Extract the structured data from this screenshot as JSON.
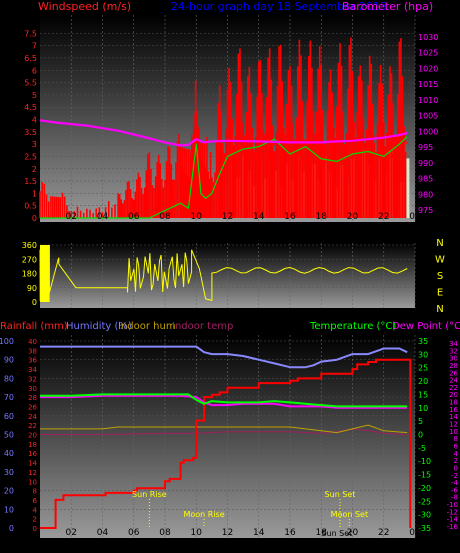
{
  "header": {
    "wind_label": "Windspeed (m/s)",
    "title": "24-hour graph day 18 September 2015",
    "baro_label": "Barometer (hpa)"
  },
  "bottom_header": {
    "rain_label": "Rainfall (mm)",
    "hum_label": "Humidity (%)",
    "indoor_hum_label": "Indoor hum",
    "indoor_temp_label": "Indoor temp",
    "temp_label": "Temperature (°C)",
    "dew_label": "Dew Point (°C)"
  },
  "colors": {
    "wind": "#ff0000",
    "gust_bg": "#ff0000",
    "avg_wind": "#00dd00",
    "direction": "#ffff00",
    "pressure": "#ff00ff",
    "temperature": "#00ff00",
    "humidity": "#8888ff",
    "rain": "#ff0000",
    "dew": "#ff00ff",
    "indoor_hum": "#c0a000",
    "indoor_temp": "#a02060",
    "white_bars": "#d0f0d0",
    "red_axis": "#ff2222",
    "magenta_axis": "#ff00ff",
    "blue_axis": "#7777ff",
    "green_axis": "#00ff00",
    "annotation": "#ffff00",
    "tick_text": "#000000"
  },
  "chart_data": [
    {
      "type": "line",
      "name": "wind_and_pressure",
      "xlabel": "",
      "x_ticks": [
        "02",
        "04",
        "06",
        "08",
        "10",
        "12",
        "14",
        "16",
        "18",
        "20",
        "22",
        "00"
      ],
      "wind_axis": {
        "label": "Windspeed (m/s)",
        "range": [
          0,
          8
        ],
        "ticks": [
          "0",
          "0.5",
          "1",
          "1.5",
          "2",
          "2.5",
          "3",
          "3.5",
          "4",
          "4.5",
          "5",
          "5.5",
          "6",
          "6.5",
          "7",
          "7.5"
        ]
      },
      "baro_axis": {
        "label": "Barometer (hpa)",
        "range": [
          972.5,
          1035
        ],
        "ticks": [
          "975",
          "980",
          "985",
          "990",
          "995",
          "1000",
          "1005",
          "1010",
          "1015",
          "1020",
          "1025",
          "1030"
        ]
      },
      "pressure_series": {
        "name": "Barometer",
        "x": [
          0,
          1,
          2,
          3,
          4,
          5,
          6,
          7,
          8,
          9,
          9.5,
          10,
          10.5,
          11,
          12,
          14,
          16,
          18,
          19,
          20,
          21,
          22,
          23,
          23.5
        ],
        "values": [
          1003.5,
          1002.8,
          1002.3,
          1001.8,
          1001.0,
          1000.2,
          999.0,
          997.8,
          996.5,
          995.5,
          995.7,
          997.5,
          996.5,
          996.8,
          997.0,
          996.8,
          996.5,
          996.5,
          996.8,
          997.0,
          997.5,
          998.0,
          998.8,
          999.5
        ]
      },
      "gust_envelope": {
        "name": "Gust",
        "x": [
          0,
          0.7,
          1.3,
          2,
          3,
          4,
          5,
          5.5,
          6,
          6.5,
          7,
          7.5,
          8,
          8.5,
          9,
          9.3,
          9.6,
          9.8,
          10,
          10.3,
          10.6,
          11,
          11.5,
          12,
          12.5,
          13,
          13.5,
          14,
          14.5,
          15,
          15.5,
          16,
          16.5,
          17,
          17.5,
          18,
          18.5,
          19,
          19.5,
          20,
          20.5,
          21,
          21.5,
          22,
          22.5,
          23,
          23.5
        ],
        "values": [
          1.5,
          1.5,
          1.2,
          0.5,
          0.4,
          0.5,
          1.0,
          1.5,
          1.6,
          2.0,
          2.8,
          2.5,
          2.8,
          3.2,
          3.5,
          3.2,
          3.0,
          4.0,
          6.2,
          3.8,
          3.5,
          2.5,
          5.5,
          6.0,
          6.5,
          7.5,
          5.8,
          6.5,
          7.5,
          6.0,
          7.8,
          6.2,
          7.5,
          6.5,
          7.8,
          6.8,
          5.8,
          7.5,
          6.5,
          7.8,
          6.2,
          7.0,
          5.8,
          6.5,
          6.2,
          7.8,
          5.5
        ]
      },
      "wind_series": {
        "name": "Windspeed",
        "x": [
          0,
          1,
          2,
          3,
          4,
          5,
          5.5,
          6,
          6.5,
          7,
          7.5,
          8,
          8.5,
          9,
          9.5,
          10,
          10.5,
          11,
          11.5,
          12,
          12.5,
          13,
          13.5,
          14,
          14.5,
          15,
          15.5,
          16,
          16.5,
          17,
          17.5,
          18,
          18.5,
          19,
          19.5,
          20,
          20.5,
          21,
          21.5,
          22,
          22.5,
          23,
          23.5
        ],
        "values": [
          0,
          0,
          0,
          0,
          0,
          0,
          0.2,
          0,
          0.3,
          0.2,
          0.4,
          0.6,
          0.3,
          0.5,
          0.8,
          1.5,
          1.2,
          0.8,
          1.8,
          2.2,
          3.0,
          3.5,
          2.4,
          2.8,
          3.5,
          3.0,
          2.4,
          3.6,
          2.8,
          2.2,
          3.0,
          2.0,
          2.5,
          1.8,
          2.8,
          2.4,
          3.2,
          2.6,
          3.4,
          2.8,
          2.4,
          3.6,
          3.0
        ]
      },
      "avg_wind_series": {
        "name": "Average wind",
        "x": [
          0,
          2,
          4,
          6,
          7,
          8,
          9,
          9.5,
          10,
          10.3,
          10.6,
          11,
          11.5,
          12,
          13,
          14,
          15,
          16,
          17,
          18,
          19,
          20,
          21,
          22,
          23,
          23.5
        ],
        "values": [
          0,
          0,
          0,
          0,
          0,
          0.3,
          0.6,
          0.4,
          3.0,
          1.0,
          0.8,
          1.0,
          1.8,
          2.5,
          2.8,
          2.9,
          3.2,
          2.6,
          2.9,
          2.4,
          2.3,
          2.6,
          2.7,
          2.5,
          3.0,
          3.3
        ]
      }
    },
    {
      "type": "scatter",
      "name": "wind_direction",
      "y_ticks": [
        "360",
        "270",
        "180",
        "90",
        "0"
      ],
      "compass_labels": [
        "N",
        "W",
        "S",
        "E",
        "N"
      ],
      "range": [
        0,
        360
      ],
      "segments": [
        {
          "x": [
            0,
            0.6
          ],
          "y": [
            330,
            60
          ]
        },
        {
          "x": [
            0.6,
            1.2
          ],
          "y": [
            60,
            280
          ]
        },
        {
          "x": [
            1.2,
            2.3
          ],
          "y": [
            240,
            90
          ]
        },
        {
          "x": [
            2.3,
            5.6
          ],
          "y": [
            90,
            90
          ]
        },
        {
          "x": [
            5.6,
            9.7
          ],
          "y": [
            60,
            330
          ]
        },
        {
          "x": [
            9.7,
            10.2
          ],
          "y": [
            330,
            210
          ]
        },
        {
          "x": [
            10.2,
            10.6
          ],
          "y": [
            210,
            20
          ]
        },
        {
          "x": [
            10.6,
            11.0
          ],
          "y": [
            20,
            10
          ]
        },
        {
          "x": [
            11.0,
            23.5
          ],
          "y": [
            200,
            200
          ]
        }
      ]
    },
    {
      "type": "line",
      "name": "temp_humidity_rain",
      "left_axis_rain": {
        "label": "Rainfall (mm)",
        "range": [
          0,
          40
        ],
        "ticks": [
          "0",
          "2",
          "4",
          "6",
          "8",
          "10",
          "12",
          "14",
          "16",
          "18",
          "20",
          "22",
          "24",
          "26",
          "28",
          "30",
          "32",
          "34",
          "36",
          "38",
          "40"
        ]
      },
      "left_axis_humidity": {
        "label": "Humidity (%)",
        "range": [
          0,
          100
        ],
        "ticks": [
          "0",
          "10",
          "20",
          "30",
          "40",
          "50",
          "60",
          "70",
          "80",
          "90",
          "100"
        ]
      },
      "right_axis_temp": {
        "label": "Temperature (°C)",
        "range": [
          -35,
          35
        ],
        "ticks": [
          "35",
          "30",
          "25",
          "20",
          "15",
          "10",
          "5",
          "0",
          "-5",
          "-10",
          "-15",
          "-20",
          "-25",
          "-30",
          "-35"
        ]
      },
      "right_axis_dew": {
        "label": "Dew Point (°C)",
        "ticks": [
          "34",
          "32",
          "30",
          "28",
          "26",
          "24",
          "22",
          "20",
          "18",
          "16",
          "14",
          "12",
          "10",
          "8",
          "6",
          "4",
          "2",
          "0",
          "-2",
          "-4",
          "-6",
          "-8",
          "-10",
          "-12",
          "-14",
          "-16"
        ]
      },
      "x_ticks": [
        "02",
        "04",
        "06",
        "08",
        "10",
        "12",
        "14",
        "16",
        "18",
        "20",
        "22",
        "00"
      ],
      "humidity_series": {
        "name": "Humidity",
        "x": [
          0,
          2,
          4,
          6,
          8,
          9,
          10,
          10.5,
          11,
          12,
          13,
          14,
          15,
          16,
          17,
          17.5,
          18,
          19,
          20,
          21,
          22,
          23,
          23.5
        ],
        "values": [
          97,
          97,
          97,
          97,
          97,
          97,
          97,
          94,
          93,
          93,
          92,
          90,
          88,
          86,
          86,
          87,
          89,
          90,
          93,
          93,
          96,
          96,
          94
        ]
      },
      "rain_series": {
        "name": "Rainfall",
        "x": [
          0,
          0.6,
          1.0,
          1.5,
          2,
          3,
          4,
          4.2,
          6,
          6.2,
          8,
          8.3,
          9,
          9.2,
          9.8,
          10.0,
          10.5,
          11,
          11.5,
          12,
          14,
          16,
          16.5,
          17,
          18,
          19,
          20,
          20.3,
          21,
          21.5,
          22,
          23.5
        ],
        "values": [
          0,
          0,
          6,
          7,
          7,
          7,
          7,
          7.5,
          8,
          8.5,
          10,
          10.5,
          14,
          14.5,
          15,
          23,
          28,
          28.5,
          29,
          30,
          31,
          31.5,
          32,
          32,
          33,
          33,
          34,
          35,
          35.5,
          36,
          36,
          36
        ]
      },
      "temperature_series": {
        "name": "Temperature",
        "x": [
          0,
          2,
          4,
          6,
          8,
          9,
          9.5,
          10,
          10.5,
          11,
          12,
          13,
          14,
          15,
          16,
          17,
          18,
          19,
          20,
          21,
          22,
          23,
          23.5
        ],
        "values": [
          14.5,
          14.5,
          15,
          15,
          15,
          15,
          15,
          13,
          11.5,
          12.5,
          12,
          12,
          12,
          12.5,
          12,
          11.5,
          11,
          10.5,
          10.5,
          10.5,
          10.5,
          10.5,
          10.5
        ]
      },
      "dew_series": {
        "name": "Dew Point",
        "x": [
          0,
          2,
          4,
          6,
          8,
          9,
          10,
          10.5,
          11,
          12,
          13,
          14,
          15,
          16,
          17,
          18,
          19,
          20,
          21,
          22,
          23,
          23.5
        ],
        "values": [
          14,
          14,
          14.5,
          14.5,
          14.5,
          14.5,
          14,
          12,
          11,
          11,
          11.5,
          11.5,
          11.5,
          10.5,
          10.5,
          10.5,
          10,
          10,
          10,
          10,
          10,
          10
        ]
      },
      "indoor_hum_series": {
        "name": "Indoor hum",
        "x": [
          0,
          4,
          5,
          8,
          10,
          12,
          16,
          18,
          19,
          20,
          21,
          22,
          23.5
        ],
        "values": [
          53,
          53,
          54,
          54,
          54,
          54,
          54,
          52,
          51,
          53,
          55,
          52,
          51
        ]
      },
      "indoor_temp_series": {
        "name": "Indoor temp",
        "x": [
          0,
          4,
          8,
          10,
          12,
          14,
          16,
          18,
          19,
          20,
          21,
          22,
          23.5
        ],
        "values": [
          0,
          0,
          0.5,
          0.5,
          1,
          1,
          1,
          0.5,
          1,
          2,
          1.5,
          0.5,
          0
        ]
      },
      "annotations": [
        {
          "label": "Sun Rise",
          "x": 7.0,
          "row": 0
        },
        {
          "label": "Moon Rise",
          "x": 10.5,
          "row": 1
        },
        {
          "label": "Sun Set",
          "x": 19.2,
          "row": 0
        },
        {
          "label": "Moon Set",
          "x": 19.8,
          "row": 1
        },
        {
          "label": "Sun Set",
          "x": 19.0,
          "row": 2
        }
      ]
    }
  ]
}
